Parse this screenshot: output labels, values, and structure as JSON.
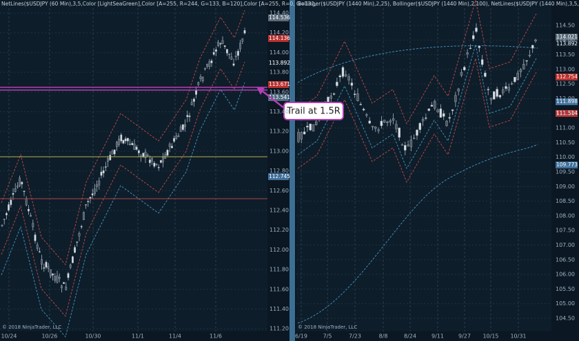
{
  "left_chart": {
    "header": "NetLines($USDJPY (60 Min),3,5,Color [LightSeaGreen],Color [A=255, R=244, G=133, B=120],Color [A=255, R=0, G=131,",
    "axis_labels": [
      "114.40",
      "114.20",
      "114.00",
      "113.80",
      "113.60",
      "113.40",
      "113.20",
      "113.00",
      "112.80",
      "112.60",
      "112.40",
      "112.20",
      "112.00",
      "111.80",
      "111.60",
      "111.40",
      "111.20"
    ],
    "price_boxes": [
      "114.536",
      "114.136",
      "113.892",
      "113.671",
      "113.541",
      "112.745"
    ],
    "dates": [
      "10/24",
      "10/26",
      "10/30",
      "11/1",
      "11/4",
      "11/6"
    ],
    "copyright": "© 2018 NinjaTrader, LLC"
  },
  "right_chart": {
    "header": "Bollinger($USDJPY (1440 Min),2,25), Bollinger($USDJPY (1440 Min),2,100), NetLines($USDJPY (1440 Min),3,5,Color",
    "axis_labels": [
      "114.50",
      "114.00",
      "113.50",
      "113.00",
      "112.50",
      "112.00",
      "111.50",
      "111.00",
      "110.50",
      "110.00",
      "109.50",
      "109.00",
      "108.50",
      "108.00",
      "107.50",
      "107.00",
      "106.50",
      "106.00",
      "105.50",
      "105.00",
      "104.50"
    ],
    "price_boxes": [
      "114.021",
      "113.892",
      "112.754",
      "111.898",
      "111.514",
      "109.773"
    ],
    "dates": [
      "6/19",
      "7/5",
      "7/23",
      "8/8",
      "8/24",
      "9/11",
      "9/27",
      "10/15",
      "10/31"
    ],
    "copyright": "© 2018 NinjaTrader, LLC"
  },
  "callout": "Trail at 1.5R"
}
